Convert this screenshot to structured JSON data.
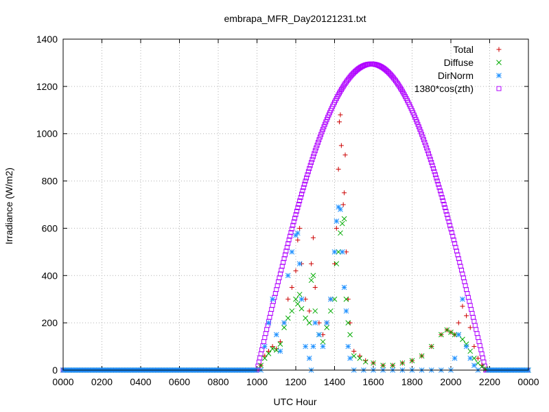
{
  "chart_data": {
    "type": "scatter",
    "title": "embrapa_MFR_Day20121231.txt",
    "xlabel": "UTC Hour",
    "ylabel": "Irradiance (W/m2)",
    "xlim": [
      0,
      24
    ],
    "ylim": [
      0,
      1400
    ],
    "x_ticks": [
      "0000",
      "0200",
      "0400",
      "0600",
      "0800",
      "1000",
      "1200",
      "1400",
      "1600",
      "1800",
      "2000",
      "2200",
      "0000"
    ],
    "y_ticks": [
      0,
      200,
      400,
      600,
      800,
      1000,
      1200,
      1400
    ],
    "grid": true,
    "legend_position": "top-right",
    "colors": {
      "total": "#cc0000",
      "diffuse": "#00aa00",
      "dirnorm": "#1e90ff",
      "cos": "#b000ff"
    },
    "series": [
      {
        "name": "Total",
        "marker": "plus",
        "points": [
          [
            10.2,
            20
          ],
          [
            10.4,
            60
          ],
          [
            10.6,
            80
          ],
          [
            10.8,
            100
          ],
          [
            11.0,
            90
          ],
          [
            11.2,
            120
          ],
          [
            11.4,
            200
          ],
          [
            11.6,
            300
          ],
          [
            11.8,
            350
          ],
          [
            12.0,
            420
          ],
          [
            12.1,
            550
          ],
          [
            12.2,
            600
          ],
          [
            12.3,
            450
          ],
          [
            12.5,
            300
          ],
          [
            12.7,
            250
          ],
          [
            12.8,
            450
          ],
          [
            12.9,
            560
          ],
          [
            13.0,
            350
          ],
          [
            13.2,
            200
          ],
          [
            13.4,
            150
          ],
          [
            13.6,
            200
          ],
          [
            13.8,
            300
          ],
          [
            14.0,
            450
          ],
          [
            14.1,
            600
          ],
          [
            14.2,
            850
          ],
          [
            14.25,
            1050
          ],
          [
            14.3,
            1080
          ],
          [
            14.35,
            950
          ],
          [
            14.45,
            700
          ],
          [
            14.5,
            750
          ],
          [
            14.55,
            910
          ],
          [
            14.6,
            500
          ],
          [
            14.7,
            300
          ],
          [
            14.8,
            200
          ],
          [
            15.0,
            80
          ],
          [
            15.3,
            60
          ],
          [
            15.6,
            40
          ],
          [
            16.0,
            30
          ],
          [
            16.5,
            20
          ],
          [
            17.0,
            20
          ],
          [
            17.5,
            30
          ],
          [
            18.0,
            40
          ],
          [
            18.5,
            60
          ],
          [
            19.0,
            100
          ],
          [
            19.5,
            150
          ],
          [
            19.8,
            170
          ],
          [
            20.0,
            160
          ],
          [
            20.2,
            150
          ],
          [
            20.4,
            200
          ],
          [
            20.6,
            270
          ],
          [
            20.8,
            230
          ],
          [
            21.0,
            180
          ],
          [
            21.2,
            100
          ],
          [
            21.4,
            50
          ],
          [
            21.6,
            20
          ],
          [
            21.8,
            5
          ]
        ]
      },
      {
        "name": "Diffuse",
        "marker": "cross",
        "points": [
          [
            10.2,
            20
          ],
          [
            10.4,
            50
          ],
          [
            10.6,
            70
          ],
          [
            10.8,
            90
          ],
          [
            11.0,
            85
          ],
          [
            11.2,
            110
          ],
          [
            11.4,
            180
          ],
          [
            11.6,
            220
          ],
          [
            11.8,
            250
          ],
          [
            12.0,
            300
          ],
          [
            12.1,
            280
          ],
          [
            12.2,
            320
          ],
          [
            12.3,
            260
          ],
          [
            12.5,
            220
          ],
          [
            12.7,
            200
          ],
          [
            12.8,
            380
          ],
          [
            12.9,
            400
          ],
          [
            13.0,
            250
          ],
          [
            13.2,
            150
          ],
          [
            13.4,
            120
          ],
          [
            13.6,
            180
          ],
          [
            13.8,
            250
          ],
          [
            14.0,
            300
          ],
          [
            14.1,
            450
          ],
          [
            14.2,
            500
          ],
          [
            14.3,
            580
          ],
          [
            14.4,
            620
          ],
          [
            14.5,
            640
          ],
          [
            14.6,
            300
          ],
          [
            14.7,
            200
          ],
          [
            14.8,
            150
          ],
          [
            15.0,
            60
          ],
          [
            15.3,
            50
          ],
          [
            15.6,
            35
          ],
          [
            16.0,
            30
          ],
          [
            16.5,
            20
          ],
          [
            17.0,
            20
          ],
          [
            17.5,
            30
          ],
          [
            18.0,
            40
          ],
          [
            18.5,
            60
          ],
          [
            19.0,
            100
          ],
          [
            19.5,
            150
          ],
          [
            19.8,
            170
          ],
          [
            20.0,
            160
          ],
          [
            20.2,
            150
          ],
          [
            20.4,
            150
          ],
          [
            20.6,
            130
          ],
          [
            20.8,
            110
          ],
          [
            21.0,
            80
          ],
          [
            21.2,
            50
          ],
          [
            21.4,
            30
          ],
          [
            21.6,
            15
          ],
          [
            21.8,
            5
          ]
        ]
      },
      {
        "name": "DirNorm",
        "marker": "star",
        "points": [
          [
            10.2,
            0
          ],
          [
            10.4,
            100
          ],
          [
            10.6,
            200
          ],
          [
            10.8,
            300
          ],
          [
            11.0,
            150
          ],
          [
            11.2,
            80
          ],
          [
            11.4,
            200
          ],
          [
            11.6,
            400
          ],
          [
            11.8,
            500
          ],
          [
            12.0,
            570
          ],
          [
            12.1,
            580
          ],
          [
            12.2,
            450
          ],
          [
            12.3,
            300
          ],
          [
            12.5,
            100
          ],
          [
            12.7,
            50
          ],
          [
            12.8,
            0
          ],
          [
            12.9,
            100
          ],
          [
            13.0,
            200
          ],
          [
            13.2,
            150
          ],
          [
            13.4,
            100
          ],
          [
            13.6,
            200
          ],
          [
            13.8,
            300
          ],
          [
            14.0,
            500
          ],
          [
            14.1,
            630
          ],
          [
            14.2,
            690
          ],
          [
            14.3,
            680
          ],
          [
            14.4,
            500
          ],
          [
            14.5,
            350
          ],
          [
            14.6,
            250
          ],
          [
            14.7,
            100
          ],
          [
            14.8,
            50
          ],
          [
            15.0,
            0
          ],
          [
            15.5,
            0
          ],
          [
            16.0,
            0
          ],
          [
            16.5,
            0
          ],
          [
            17.0,
            0
          ],
          [
            17.5,
            0
          ],
          [
            18.0,
            0
          ],
          [
            18.5,
            0
          ],
          [
            19.0,
            0
          ],
          [
            19.5,
            0
          ],
          [
            20.0,
            0
          ],
          [
            20.2,
            50
          ],
          [
            20.4,
            150
          ],
          [
            20.6,
            300
          ],
          [
            20.8,
            100
          ],
          [
            21.0,
            50
          ],
          [
            21.2,
            20
          ],
          [
            21.4,
            0
          ]
        ]
      },
      {
        "name": "1380*cos(zth)",
        "marker": "square",
        "peak": 1295,
        "points": [
          [
            0,
            0
          ],
          [
            9.9,
            0
          ],
          [
            10.0,
            0
          ],
          [
            10.5,
            200
          ],
          [
            11.0,
            370
          ],
          [
            11.5,
            530
          ],
          [
            12.0,
            680
          ],
          [
            12.5,
            820
          ],
          [
            13.0,
            940
          ],
          [
            13.5,
            1050
          ],
          [
            14.0,
            1140
          ],
          [
            14.5,
            1210
          ],
          [
            15.0,
            1260
          ],
          [
            15.5,
            1288
          ],
          [
            16.0,
            1295
          ],
          [
            16.5,
            1282
          ],
          [
            17.0,
            1250
          ],
          [
            17.5,
            1195
          ],
          [
            18.0,
            1120
          ],
          [
            18.5,
            1020
          ],
          [
            19.0,
            900
          ],
          [
            19.5,
            760
          ],
          [
            20.0,
            610
          ],
          [
            20.5,
            450
          ],
          [
            21.0,
            280
          ],
          [
            21.5,
            110
          ],
          [
            21.8,
            0
          ],
          [
            22.4,
            0
          ],
          [
            24,
            0
          ]
        ]
      }
    ]
  }
}
